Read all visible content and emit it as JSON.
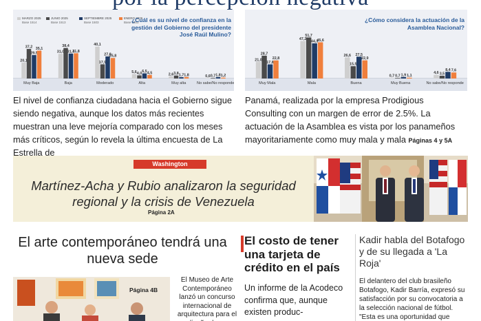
{
  "headline_fragment": "por la percepción negativa",
  "legend": [
    {
      "label": "MARZO 2025",
      "base": "Base 1514",
      "color": "#cfcfcf"
    },
    {
      "label": "JUNIO 2025",
      "base": "Base 1513",
      "color": "#4a4a4a"
    },
    {
      "label": "SEPTIEMBRE 2025",
      "base": "Base 1503",
      "color": "#1f3b66"
    },
    {
      "label": "ENERO 2026",
      "base": "Base 1503",
      "color": "#f07f3c"
    }
  ],
  "chart_data": [
    {
      "type": "bar",
      "title": "¿Cuál es su nivel de confianza en la gestión del Gobierno del presidente José Raúl Mulino?",
      "categories": [
        "Muy Baja",
        "Baja",
        "Moderado",
        "Alta",
        "Muy alta",
        "No sabe/No responde"
      ],
      "series": [
        {
          "name": "MARZO 2025",
          "values": [
            20.1,
            31.0,
            40.1,
            5.6,
            2.6,
            0.6
          ]
        },
        {
          "name": "JUNIO 2025",
          "values": [
            37.2,
            38.4,
            17.9,
            4.0,
            3.8,
            0.7
          ]
        },
        {
          "name": "SEPTIEMBRE 2025",
          "values": [
            29.5,
            31.4,
            27.8,
            6.5,
            1.7,
            1.8
          ]
        },
        {
          "name": "ENERO 2026",
          "values": [
            35.1,
            31.8,
            25.8,
            4.5,
            1.8,
            1.2
          ]
        }
      ],
      "value_labels": [
        [
          "20,1",
          "31,0",
          "40,1",
          "5,6",
          "2,6",
          "0,6"
        ],
        [
          "37,2",
          "38,4",
          "17,9",
          "4,0",
          "3,8",
          "0,7"
        ],
        [
          "29,5",
          "31,4",
          "27,8",
          "6,5",
          "1,7",
          "1,8"
        ],
        [
          "35,1",
          "31,8",
          "25,8",
          "4,5",
          "1,8",
          "1,2"
        ]
      ],
      "ylim": [
        0,
        52
      ]
    },
    {
      "type": "bar",
      "title": "¿Cómo considera la actuación de la Asamblea Nacional?",
      "categories": [
        "Muy Mala",
        "Mala",
        "Buena",
        "Muy Buena",
        "No sabe/No responde"
      ],
      "series": [
        {
          "name": "MARZO 2025",
          "values": [
            21.0,
            47.2,
            26.6,
            0.7,
            4.6
          ]
        },
        {
          "name": "JUNIO 2025",
          "values": [
            28.7,
            51.7,
            15.5,
            0.7,
            3.5
          ]
        },
        {
          "name": "SEPTIEMBRE 2025",
          "values": [
            17.8,
            44.3,
            27.5,
            1.9,
            8.4
          ]
        },
        {
          "name": "ENERO 2026",
          "values": [
            22.8,
            45.6,
            22.9,
            1.1,
            7.6
          ]
        }
      ],
      "value_labels": [
        [
          "21,0",
          "47,2",
          "26,6",
          "0,7",
          "4,6"
        ],
        [
          "28,7",
          "51,7",
          "15,5",
          "0,7",
          "3,5"
        ],
        [
          "17,8",
          "44,3",
          "27,5",
          "1,9",
          "8,4"
        ],
        [
          "22,8",
          "45,6",
          "22,9",
          "1,1",
          "7,6"
        ]
      ],
      "ylim": [
        0,
        52
      ]
    }
  ],
  "story_main": {
    "left_text": "El nivel de confianza ciudadana hacia el Gobierno sigue siendo negativa, aunque los datos más recientes muestran una leve mejoría comparado con los meses más críticos, según lo revela la última encuesta de La Estrella de",
    "right_text": "Panamá, realizada por la empresa Prodigious Consulting con un margen de error de 2.5%. La actuación de la Asamblea es vista por los panameños mayoritariamente como muy mala y mala",
    "pages": "Páginas 4 y 5A"
  },
  "washington": {
    "tag": "Washington",
    "headline": "Martínez-Acha y Rubio analizaron la seguridad regional y la crisis de Venezuela",
    "page": "Página 2A"
  },
  "art": {
    "title": "El arte contemporáneo tendrá una nueva sede",
    "page": "Página 4B",
    "text": "El Museo de Arte Contemporáneo lanzó un concurso internacional de arquitectura para el diseño de su"
  },
  "credit_card": {
    "title": "El costo de tener una tarjeta de crédito en el país",
    "text": "Un informe de la Acodeco confirma que, aunque existen produc-"
  },
  "kadir": {
    "title": "Kadir habla del Botafogo y de su llegada a 'La Roja'",
    "text": "El delantero del club brasileño Botafogo, Kadir Barría, expresó su satisfacción por su convocatoria a la selección nacional de fútbol. \"Esta es una oportunidad que"
  }
}
